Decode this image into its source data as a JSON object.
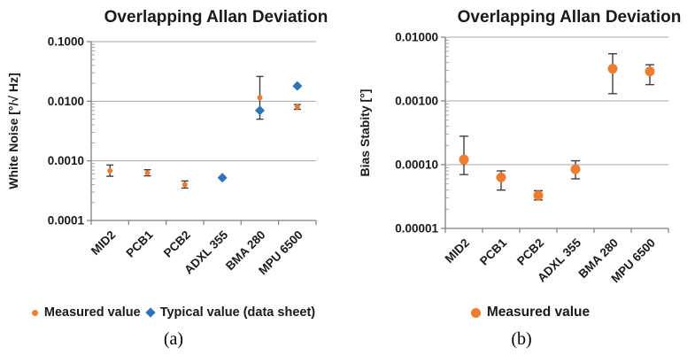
{
  "colors": {
    "measured_orange": "#ED7D31",
    "typical_blue": "#2E75B6",
    "error_bar": "#404040",
    "gridline": "#A6A6A6",
    "axis": "#7F7F7F",
    "text": "#1A1A1A"
  },
  "chart_data": [
    {
      "type": "scatter",
      "title": "Overlapping Allan Deviation",
      "ylabel": "White Noise [°/√ Hz]",
      "xlabel": "",
      "caption": "(a)",
      "log_scale": true,
      "grid": true,
      "legend_position": "bottom",
      "ylim": [
        0.0001,
        0.1
      ],
      "y_tick_labels": [
        "0.1000",
        "0.0100",
        "0.0010",
        "0.0001"
      ],
      "categories": [
        "MID2",
        "PCB1",
        "PCB2",
        "ADXL 355",
        "BMA 280",
        "MPU 6500"
      ],
      "series": [
        {
          "name": "Measured value",
          "marker": "circle",
          "color": "#ED7D31",
          "values": [
            0.00068,
            0.00063,
            0.0004,
            null,
            0.0115,
            0.008
          ],
          "err_lo": [
            0.00055,
            0.00056,
            0.00035,
            null,
            0.005,
            0.0073
          ],
          "err_hi": [
            0.00085,
            0.00071,
            0.00046,
            null,
            0.026,
            0.0088
          ]
        },
        {
          "name": "Typical value (data sheet)",
          "marker": "diamond",
          "color": "#2E75B6",
          "values": [
            null,
            null,
            null,
            0.00052,
            0.007,
            0.018
          ],
          "err_lo": [
            null,
            null,
            null,
            null,
            null,
            null
          ],
          "err_hi": [
            null,
            null,
            null,
            null,
            null,
            null
          ]
        }
      ]
    },
    {
      "type": "scatter",
      "title": "Overlapping Allan Deviation",
      "ylabel": "Bias Stabity [°]",
      "xlabel": "",
      "caption": "(b)",
      "log_scale": true,
      "grid": true,
      "legend_position": "bottom",
      "ylim": [
        1e-05,
        0.01
      ],
      "y_tick_labels": [
        "0.01000",
        "0.00100",
        "0.00010",
        "0.00001"
      ],
      "categories": [
        "MID2",
        "PCB1",
        "PCB2",
        "ADXL 355",
        "BMA 280",
        "MPU 6500"
      ],
      "series": [
        {
          "name": "Measured value",
          "marker": "circle",
          "color": "#ED7D31",
          "values": [
            0.00012,
            6.3e-05,
            3.3e-05,
            8.5e-05,
            0.0032,
            0.0029
          ],
          "err_lo": [
            7e-05,
            4e-05,
            2.8e-05,
            6e-05,
            0.0013,
            0.0018
          ],
          "err_hi": [
            0.00028,
            8e-05,
            3.9e-05,
            0.000115,
            0.0055,
            0.0037
          ]
        }
      ]
    }
  ]
}
